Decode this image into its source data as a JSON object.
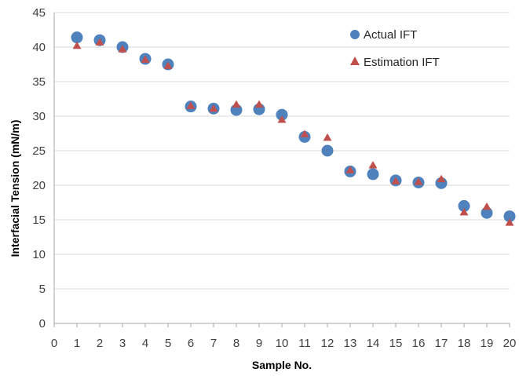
{
  "chart_data": {
    "type": "scatter",
    "xlabel": "Sample No.",
    "ylabel": "Interfacial Tension (mN/m)",
    "xlim": [
      0,
      20
    ],
    "ylim": [
      0,
      45
    ],
    "x_ticks": [
      0,
      1,
      2,
      3,
      4,
      5,
      6,
      7,
      8,
      9,
      10,
      11,
      12,
      13,
      14,
      15,
      16,
      17,
      18,
      19,
      20
    ],
    "y_ticks": [
      0,
      5,
      10,
      15,
      20,
      25,
      30,
      35,
      40,
      45
    ],
    "grid": "horizontal",
    "legend_position": "top-right",
    "series": [
      {
        "name": "Actual IFT",
        "marker": "circle",
        "color": "#4F81BD",
        "x": [
          1,
          2,
          3,
          4,
          5,
          6,
          7,
          8,
          9,
          10,
          11,
          12,
          13,
          14,
          15,
          16,
          17,
          18,
          19,
          20
        ],
        "y": [
          41.4,
          41.0,
          40.0,
          38.3,
          37.5,
          31.4,
          31.1,
          30.9,
          31.0,
          30.2,
          27.0,
          25.0,
          22.0,
          21.6,
          20.7,
          20.4,
          20.3,
          17.0,
          16.0,
          15.5
        ]
      },
      {
        "name": "Estimation IFT",
        "marker": "triangle",
        "color": "#C0504D",
        "x": [
          1,
          2,
          3,
          4,
          5,
          6,
          7,
          8,
          9,
          10,
          11,
          12,
          13,
          14,
          15,
          16,
          17,
          18,
          19,
          20
        ],
        "y": [
          40.2,
          40.7,
          39.7,
          38.2,
          37.3,
          31.5,
          31.1,
          31.7,
          31.7,
          29.5,
          27.4,
          26.9,
          22.2,
          22.9,
          20.6,
          20.5,
          20.9,
          16.1,
          16.9,
          14.6
        ]
      }
    ]
  }
}
